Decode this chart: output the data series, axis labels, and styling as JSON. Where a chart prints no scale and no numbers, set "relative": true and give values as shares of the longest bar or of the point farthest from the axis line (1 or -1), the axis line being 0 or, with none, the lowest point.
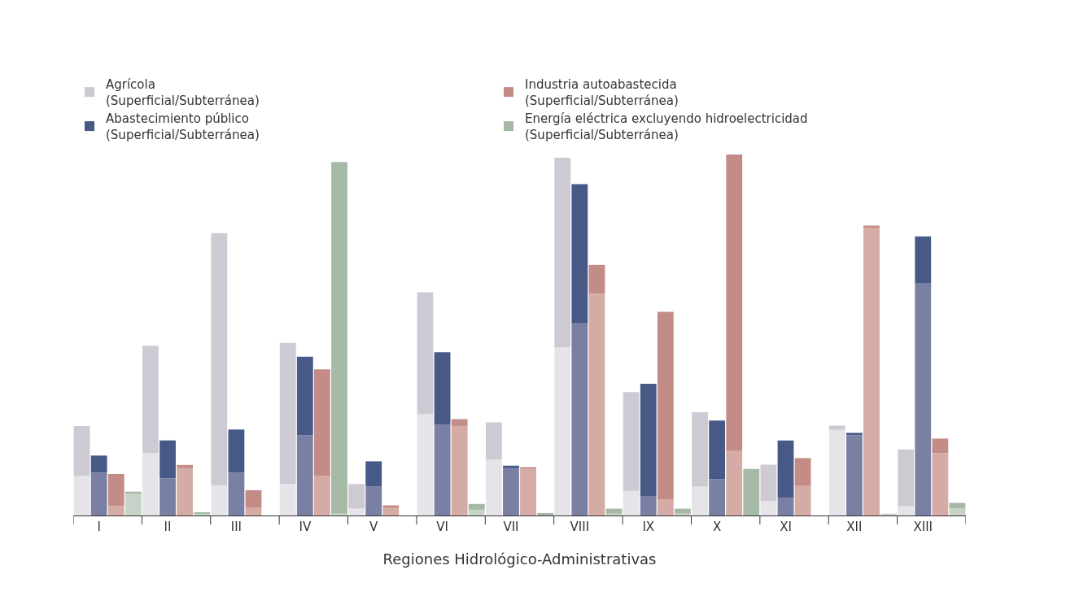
{
  "chart_data": {
    "type": "bar",
    "relative": true,
    "stacked": true,
    "xlabel": "Regiones Hidrológico-Administrativas",
    "legend": "top",
    "categories": [
      null,
      "I",
      null,
      null,
      null,
      "II",
      null,
      null,
      null,
      "III",
      null,
      null,
      null,
      "IV",
      null,
      null,
      null,
      "V",
      null,
      null,
      null,
      "VI",
      null,
      null,
      null,
      "VII",
      null,
      null,
      null,
      "VIII",
      null,
      null,
      null,
      "IX",
      null,
      null,
      null,
      "X",
      null,
      null,
      null,
      "XI",
      null,
      null,
      null,
      "XII",
      null,
      null,
      null,
      "XIII",
      null,
      null
    ],
    "series": [
      {
        "color": "#e6e4e8",
        "values": [
          0.11,
          null,
          null,
          null,
          0.173,
          null,
          null,
          null,
          0.084,
          null,
          null,
          null,
          0.087,
          null,
          null,
          null,
          0.019,
          null,
          null,
          null,
          0.281,
          null,
          null,
          null,
          0.155,
          null,
          null,
          null,
          0.466,
          null,
          null,
          null,
          0.068,
          null,
          null,
          null,
          0.08,
          null,
          null,
          null,
          0.04,
          null,
          null,
          null,
          0.237,
          null,
          null,
          null,
          0.026,
          null,
          null,
          null
        ]
      },
      {
        "name": "Agrícola\n(Superficial/Subterránea)",
        "color": "#cdcad3",
        "values": [
          0.138,
          null,
          null,
          null,
          0.297,
          null,
          null,
          null,
          0.698,
          null,
          null,
          null,
          0.391,
          null,
          null,
          null,
          0.068,
          null,
          null,
          null,
          0.337,
          null,
          null,
          null,
          0.103,
          null,
          null,
          null,
          0.525,
          null,
          null,
          null,
          0.274,
          null,
          null,
          null,
          0.206,
          null,
          null,
          null,
          0.101,
          null,
          null,
          null,
          0.012,
          null,
          null,
          null,
          0.157,
          null,
          null,
          null
        ]
      },
      {
        "color": "#d5aba5",
        "values": [
          null,
          null,
          0.026,
          null,
          null,
          null,
          0.131,
          null,
          null,
          null,
          0.021,
          null,
          null,
          null,
          0.11,
          null,
          null,
          null,
          0.021,
          null,
          null,
          null,
          0.248,
          null,
          null,
          null,
          0.129,
          null,
          null,
          null,
          0.614,
          null,
          null,
          null,
          0.044,
          null,
          null,
          null,
          0.18,
          null,
          null,
          null,
          0.082,
          null,
          null,
          null,
          0.796,
          null,
          null,
          null,
          0.173,
          null
        ]
      },
      {
        "name": "Industria autoabastecida\n(Superficial/Subterránea)",
        "color": "#c48c86",
        "values": [
          null,
          null,
          0.089,
          null,
          null,
          null,
          0.009,
          null,
          null,
          null,
          0.049,
          null,
          null,
          null,
          0.295,
          null,
          null,
          null,
          0.007,
          null,
          null,
          null,
          0.019,
          null,
          null,
          null,
          0.005,
          null,
          null,
          null,
          0.08,
          null,
          null,
          null,
          0.52,
          null,
          null,
          null,
          0.82,
          null,
          null,
          null,
          0.077,
          null,
          null,
          null,
          0.007,
          null,
          null,
          null,
          0.04,
          null
        ]
      },
      {
        "color": "#7a80a3",
        "values": [
          null,
          0.119,
          null,
          null,
          null,
          0.103,
          null,
          null,
          null,
          0.119,
          null,
          null,
          null,
          0.222,
          null,
          null,
          null,
          0.08,
          null,
          null,
          null,
          0.251,
          null,
          null,
          null,
          0.131,
          null,
          null,
          null,
          0.532,
          null,
          null,
          null,
          0.054,
          null,
          null,
          null,
          0.101,
          null,
          null,
          null,
          0.049,
          null,
          null,
          null,
          0.222,
          null,
          null,
          null,
          0.644,
          null,
          null
        ]
      },
      {
        "name": "Abastecimiento público\n(Superficial/Subterránea)",
        "color": "#475a87",
        "values": [
          null,
          0.047,
          null,
          null,
          null,
          0.105,
          null,
          null,
          null,
          0.119,
          null,
          null,
          null,
          0.218,
          null,
          null,
          null,
          0.07,
          null,
          null,
          null,
          0.201,
          null,
          null,
          null,
          0.007,
          null,
          null,
          null,
          0.386,
          null,
          null,
          null,
          0.311,
          null,
          null,
          null,
          0.162,
          null,
          null,
          null,
          0.159,
          null,
          null,
          null,
          0.007,
          null,
          null,
          null,
          0.129,
          null,
          null
        ]
      },
      {
        "color": "#c6d3c6",
        "values": [
          null,
          null,
          null,
          0.061,
          null,
          null,
          null,
          0.005,
          null,
          null,
          null,
          0,
          null,
          null,
          null,
          0.005,
          null,
          null,
          null,
          0,
          null,
          null,
          null,
          0.016,
          null,
          null,
          null,
          0,
          null,
          null,
          null,
          0.005,
          null,
          null,
          null,
          0.005,
          null,
          null,
          null,
          0,
          null,
          null,
          null,
          0,
          null,
          null,
          null,
          0.005,
          null,
          null,
          null,
          0.019
        ]
      },
      {
        "name": "Energía eléctrica excluyendo hidroelectricidad\n(Superficial/Subterránea)",
        "color": "#a5b9a6",
        "values": [
          null,
          null,
          null,
          0.005,
          null,
          null,
          null,
          0.002,
          null,
          null,
          null,
          0,
          null,
          null,
          null,
          0.974,
          null,
          null,
          null,
          0,
          null,
          null,
          null,
          0.016,
          null,
          null,
          null,
          0.007,
          null,
          null,
          null,
          0.014,
          null,
          null,
          null,
          0.014,
          null,
          null,
          null,
          0.129,
          null,
          null,
          null,
          0,
          null,
          null,
          null,
          0,
          null,
          null,
          null,
          0.016
        ]
      }
    ]
  }
}
